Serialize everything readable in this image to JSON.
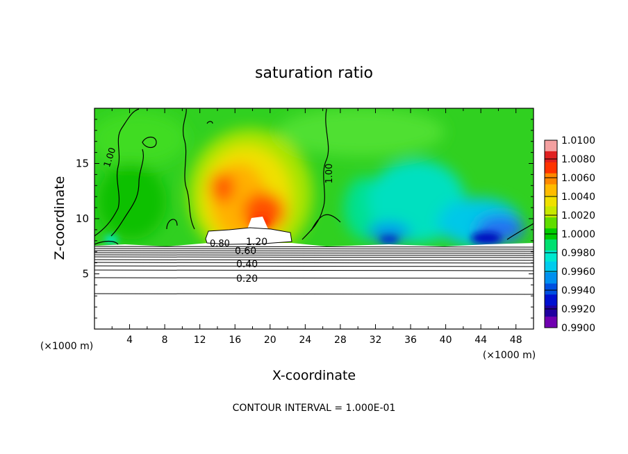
{
  "chart_data": {
    "type": "heatmap",
    "title": "saturation ratio",
    "xlabel": "X-coordinate",
    "ylabel": "Z-coordinate",
    "x_unit_left": "(×1000 m)",
    "x_unit_right": "(×1000 m)",
    "xlim": [
      0,
      50
    ],
    "ylim": [
      0,
      20
    ],
    "x_ticks": [
      4,
      8,
      12,
      16,
      20,
      24,
      28,
      32,
      36,
      40,
      44,
      48
    ],
    "x_tick_labels": [
      "4",
      "8",
      "12",
      "16",
      "20",
      "24",
      "28",
      "32",
      "36",
      "40",
      "44",
      "48"
    ],
    "y_ticks": [
      5,
      10,
      15
    ],
    "y_tick_labels": [
      "5",
      "10",
      "15"
    ],
    "colorbar": {
      "min": 0.99,
      "max": 1.01,
      "labels": [
        "1.0100",
        "1.0080",
        "1.0060",
        "1.0040",
        "1.0020",
        "1.0000",
        "0.9980",
        "0.9960",
        "0.9940",
        "0.9920",
        "0.9900"
      ],
      "colors": [
        "#f4a0a0",
        "#e02020",
        "#ff3300",
        "#ff8800",
        "#ffbb00",
        "#f0e000",
        "#c8e800",
        "#60dd00",
        "#00cc00",
        "#00e070",
        "#00e8d0",
        "#00ccee",
        "#0090f0",
        "#0050e0",
        "#0010d0",
        "#2000a0",
        "#7000b0"
      ]
    },
    "contour_labels": [
      "1.00",
      "1.00",
      "1.20",
      "0.80",
      "0.60",
      "0.40",
      "0.20"
    ],
    "footer": "CONTOUR INTERVAL = 1.000E-01"
  }
}
